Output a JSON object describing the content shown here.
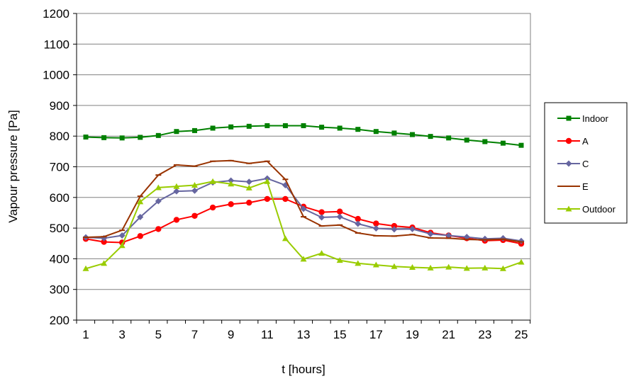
{
  "chart_data": {
    "type": "line",
    "title": "",
    "xlabel": "t [hours]",
    "ylabel": "Vapour pressure [Pa]",
    "xlim": [
      1,
      25
    ],
    "ylim": [
      200,
      1200
    ],
    "x": [
      1,
      2,
      3,
      4,
      5,
      6,
      7,
      8,
      9,
      10,
      11,
      12,
      13,
      14,
      15,
      16,
      17,
      18,
      19,
      20,
      21,
      22,
      23,
      24,
      25
    ],
    "x_ticks": [
      1,
      3,
      5,
      7,
      9,
      11,
      13,
      15,
      17,
      19,
      21,
      23,
      25
    ],
    "y_ticks": [
      200,
      300,
      400,
      500,
      600,
      700,
      800,
      900,
      1000,
      1100,
      1200
    ],
    "grid": "horizontal",
    "legend_position": "right",
    "series": [
      {
        "name": "Indoor",
        "color": "#008000",
        "marker": "square",
        "values": [
          797,
          795,
          794,
          796,
          802,
          815,
          818,
          826,
          830,
          832,
          834,
          834,
          834,
          829,
          826,
          822,
          815,
          810,
          805,
          799,
          794,
          787,
          782,
          777,
          770
        ]
      },
      {
        "name": "A",
        "color": "#ff0000",
        "marker": "circle",
        "values": [
          465,
          455,
          453,
          474,
          497,
          527,
          540,
          567,
          578,
          583,
          595,
          595,
          570,
          552,
          554,
          530,
          515,
          507,
          502,
          485,
          476,
          467,
          459,
          461,
          449
        ]
      },
      {
        "name": "C",
        "color": "#6666a0",
        "marker": "diamond",
        "values": [
          470,
          467,
          476,
          536,
          588,
          620,
          622,
          649,
          655,
          651,
          662,
          640,
          563,
          535,
          537,
          514,
          499,
          496,
          497,
          481,
          476,
          471,
          465,
          467,
          458
        ]
      },
      {
        "name": "E",
        "color": "#993300",
        "marker": "dash",
        "values": [
          470,
          472,
          493,
          604,
          673,
          706,
          702,
          718,
          720,
          711,
          718,
          659,
          537,
          507,
          510,
          484,
          475,
          474,
          479,
          468,
          467,
          463,
          462,
          464,
          455
        ]
      },
      {
        "name": "Outdoor",
        "color": "#99cc00",
        "marker": "triangle",
        "values": [
          368,
          385,
          443,
          586,
          632,
          636,
          640,
          652,
          644,
          631,
          652,
          466,
          399,
          418,
          395,
          385,
          380,
          375,
          372,
          370,
          373,
          369,
          370,
          368,
          389
        ]
      }
    ]
  }
}
